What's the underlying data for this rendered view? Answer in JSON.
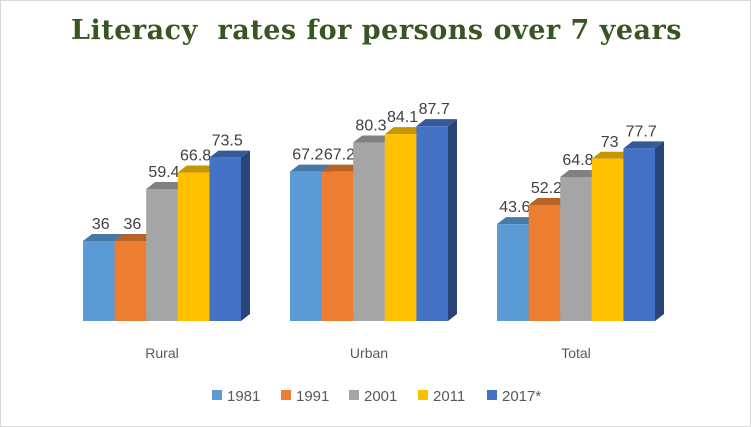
{
  "chart_data": {
    "type": "bar",
    "style": "3d-clustered-column",
    "title": "Literacy  rates for persons over 7 years",
    "categories": [
      "Rural",
      "Urban",
      "Total"
    ],
    "series": [
      {
        "name": "1981",
        "color": "#5b9bd5",
        "values": [
          36,
          67.2,
          43.6
        ]
      },
      {
        "name": "1991",
        "color": "#ed7d31",
        "values": [
          36,
          67.2,
          52.2
        ]
      },
      {
        "name": "2001",
        "color": "#a5a5a5",
        "values": [
          59.4,
          80.3,
          64.8
        ]
      },
      {
        "name": "2011",
        "color": "#ffc000",
        "values": [
          66.8,
          84.1,
          73
        ]
      },
      {
        "name": "2017*",
        "color": "#4472c4",
        "values": [
          73.5,
          87.7,
          77.7
        ]
      }
    ],
    "data_labels": true,
    "legend": "bottom",
    "grid": false,
    "ylim": [
      0,
      100
    ]
  }
}
